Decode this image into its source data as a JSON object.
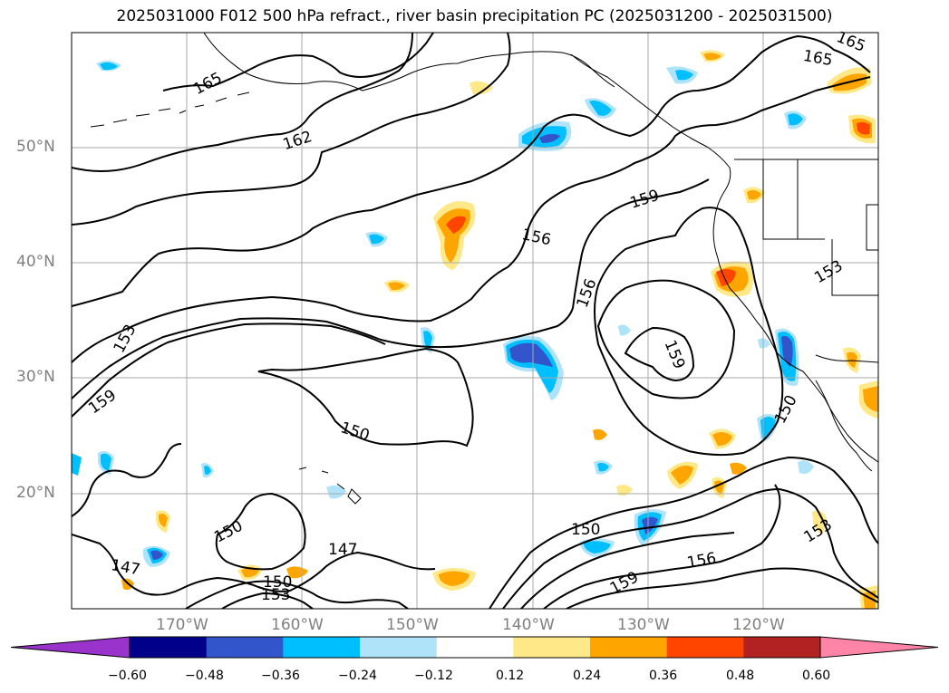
{
  "title": "2025031000 F012 500 hPa refract., river basin precipitation PC (2025031200 - 2025031500)",
  "lat_labels": [
    "50°N",
    "40°N",
    "30°N",
    "20°N"
  ],
  "lon_labels": [
    "170°W",
    "160°W",
    "150°W",
    "140°W",
    "130°W",
    "120°W"
  ],
  "contour_labels": [
    "165",
    "162",
    "165",
    "165",
    "156",
    "159",
    "156",
    "153",
    "159",
    "153",
    "159",
    "150",
    "150",
    "150",
    "147",
    "147",
    "150",
    "153",
    "150",
    "159",
    "156",
    "153"
  ],
  "colorbar": {
    "tick_labels": [
      "−0.60",
      "−0.48",
      "−0.36",
      "−0.24",
      "−0.12",
      "0.12",
      "0.24",
      "0.36",
      "0.48",
      "0.60"
    ],
    "colors": [
      "#9933cc",
      "#00008b",
      "#3355cc",
      "#00bfff",
      "#aee3f9",
      "#ffffff",
      "#ffe888",
      "#ffa500",
      "#ff4500",
      "#b22222",
      "#ff85a8"
    ]
  },
  "colors": {
    "contour": "#000000",
    "coast": "#000000",
    "grid": "#aaaaaa",
    "tick_label": "#808080"
  }
}
